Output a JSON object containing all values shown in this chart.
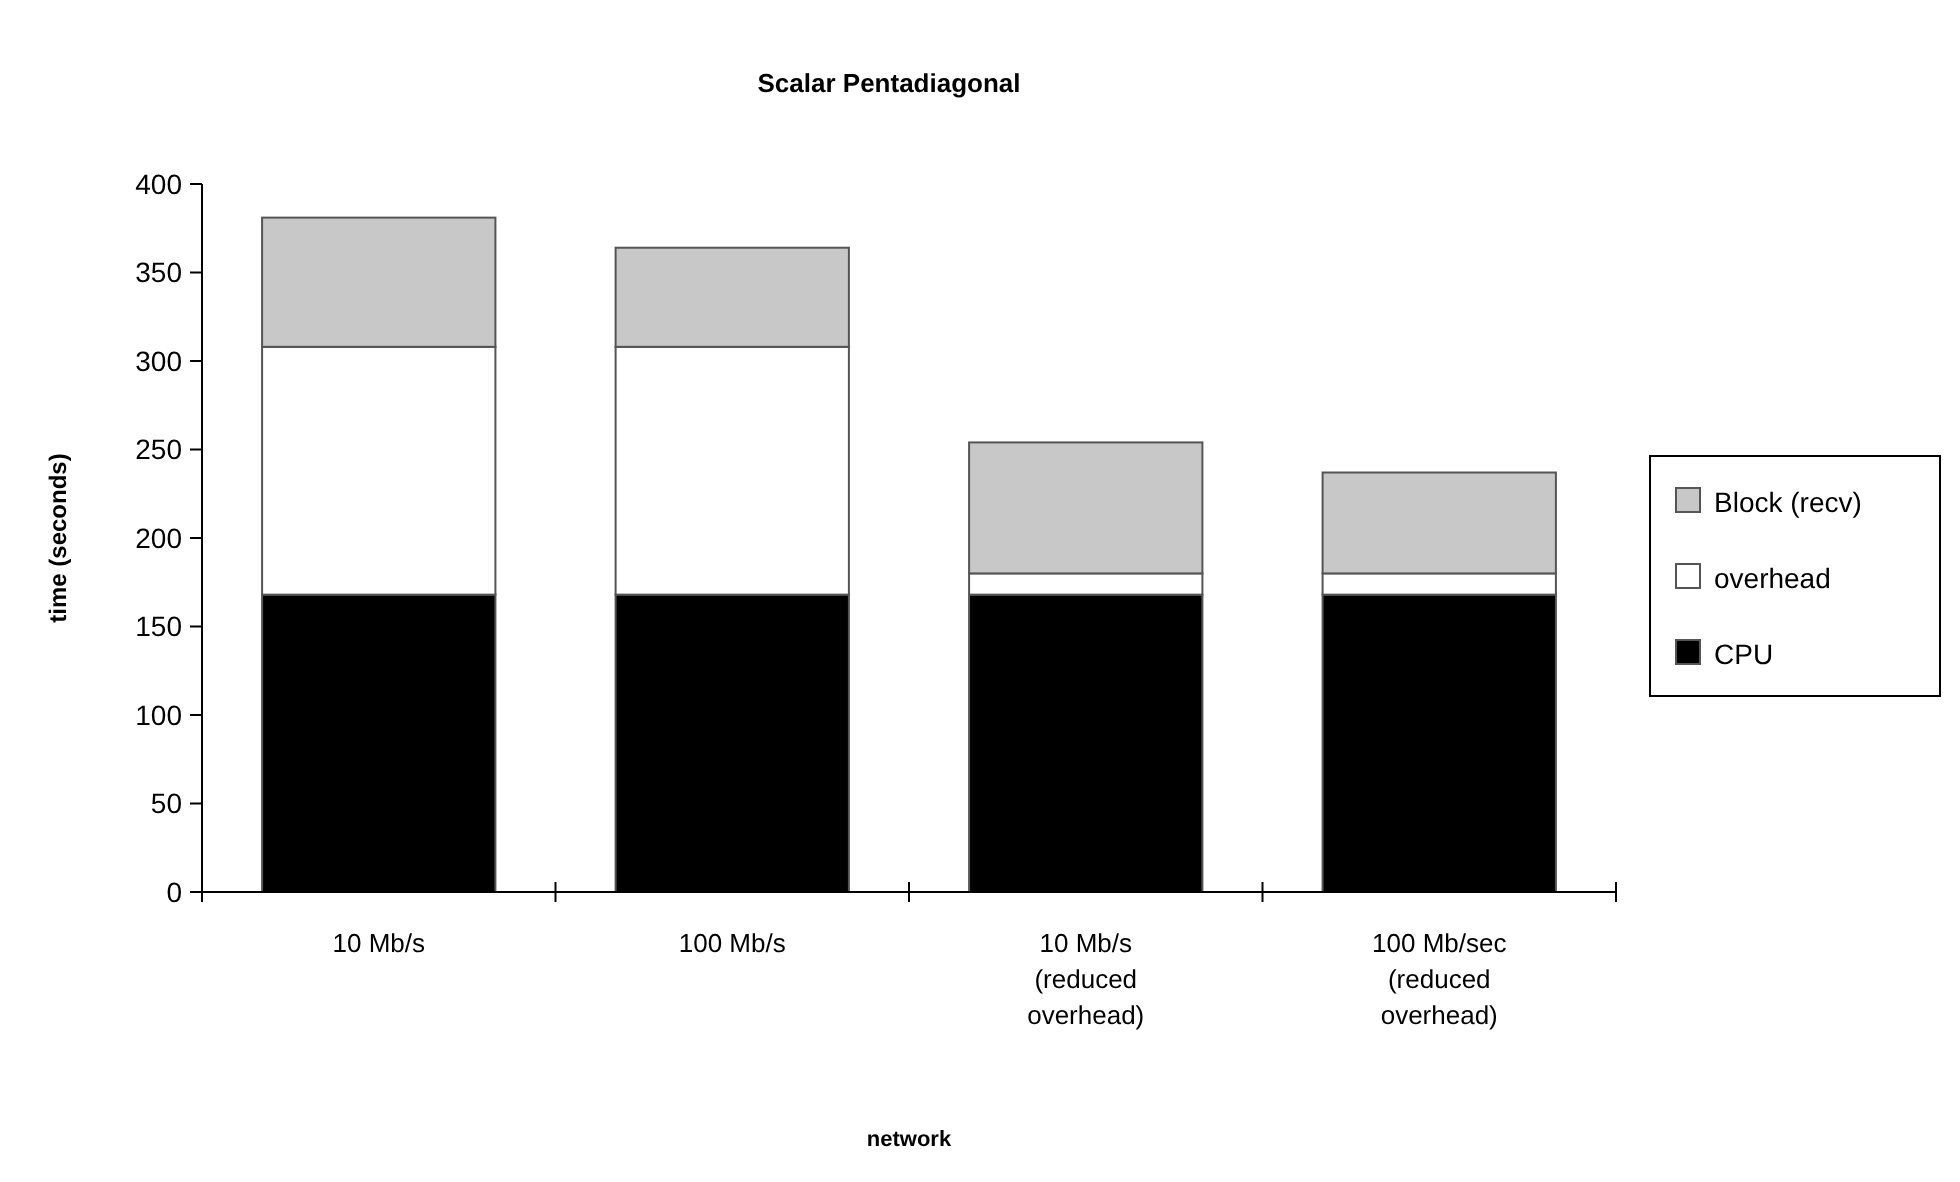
{
  "chart_data": {
    "type": "bar",
    "title": "Scalar Pentadiagonal",
    "xlabel": "network",
    "ylabel": "time (seconds)",
    "stacked": true,
    "legend": "right",
    "grid": false,
    "categories": [
      "10 Mb/s",
      "100 Mb/s",
      "10 Mb/s (reduced overhead)",
      "100 Mb/sec (reduced overhead)"
    ],
    "ylim": [
      0,
      400
    ],
    "yticks": [
      0,
      50,
      100,
      150,
      200,
      250,
      300,
      350,
      400
    ],
    "series": [
      {
        "name": "CPU",
        "color": "#000000",
        "values": [
          168,
          168,
          168,
          168
        ]
      },
      {
        "name": "overhead",
        "color": "#ffffff",
        "values": [
          140,
          140,
          12,
          12
        ]
      },
      {
        "name": "Block (recv)",
        "color": "#c8c8c8",
        "values": [
          73,
          56,
          74,
          57
        ]
      }
    ]
  }
}
